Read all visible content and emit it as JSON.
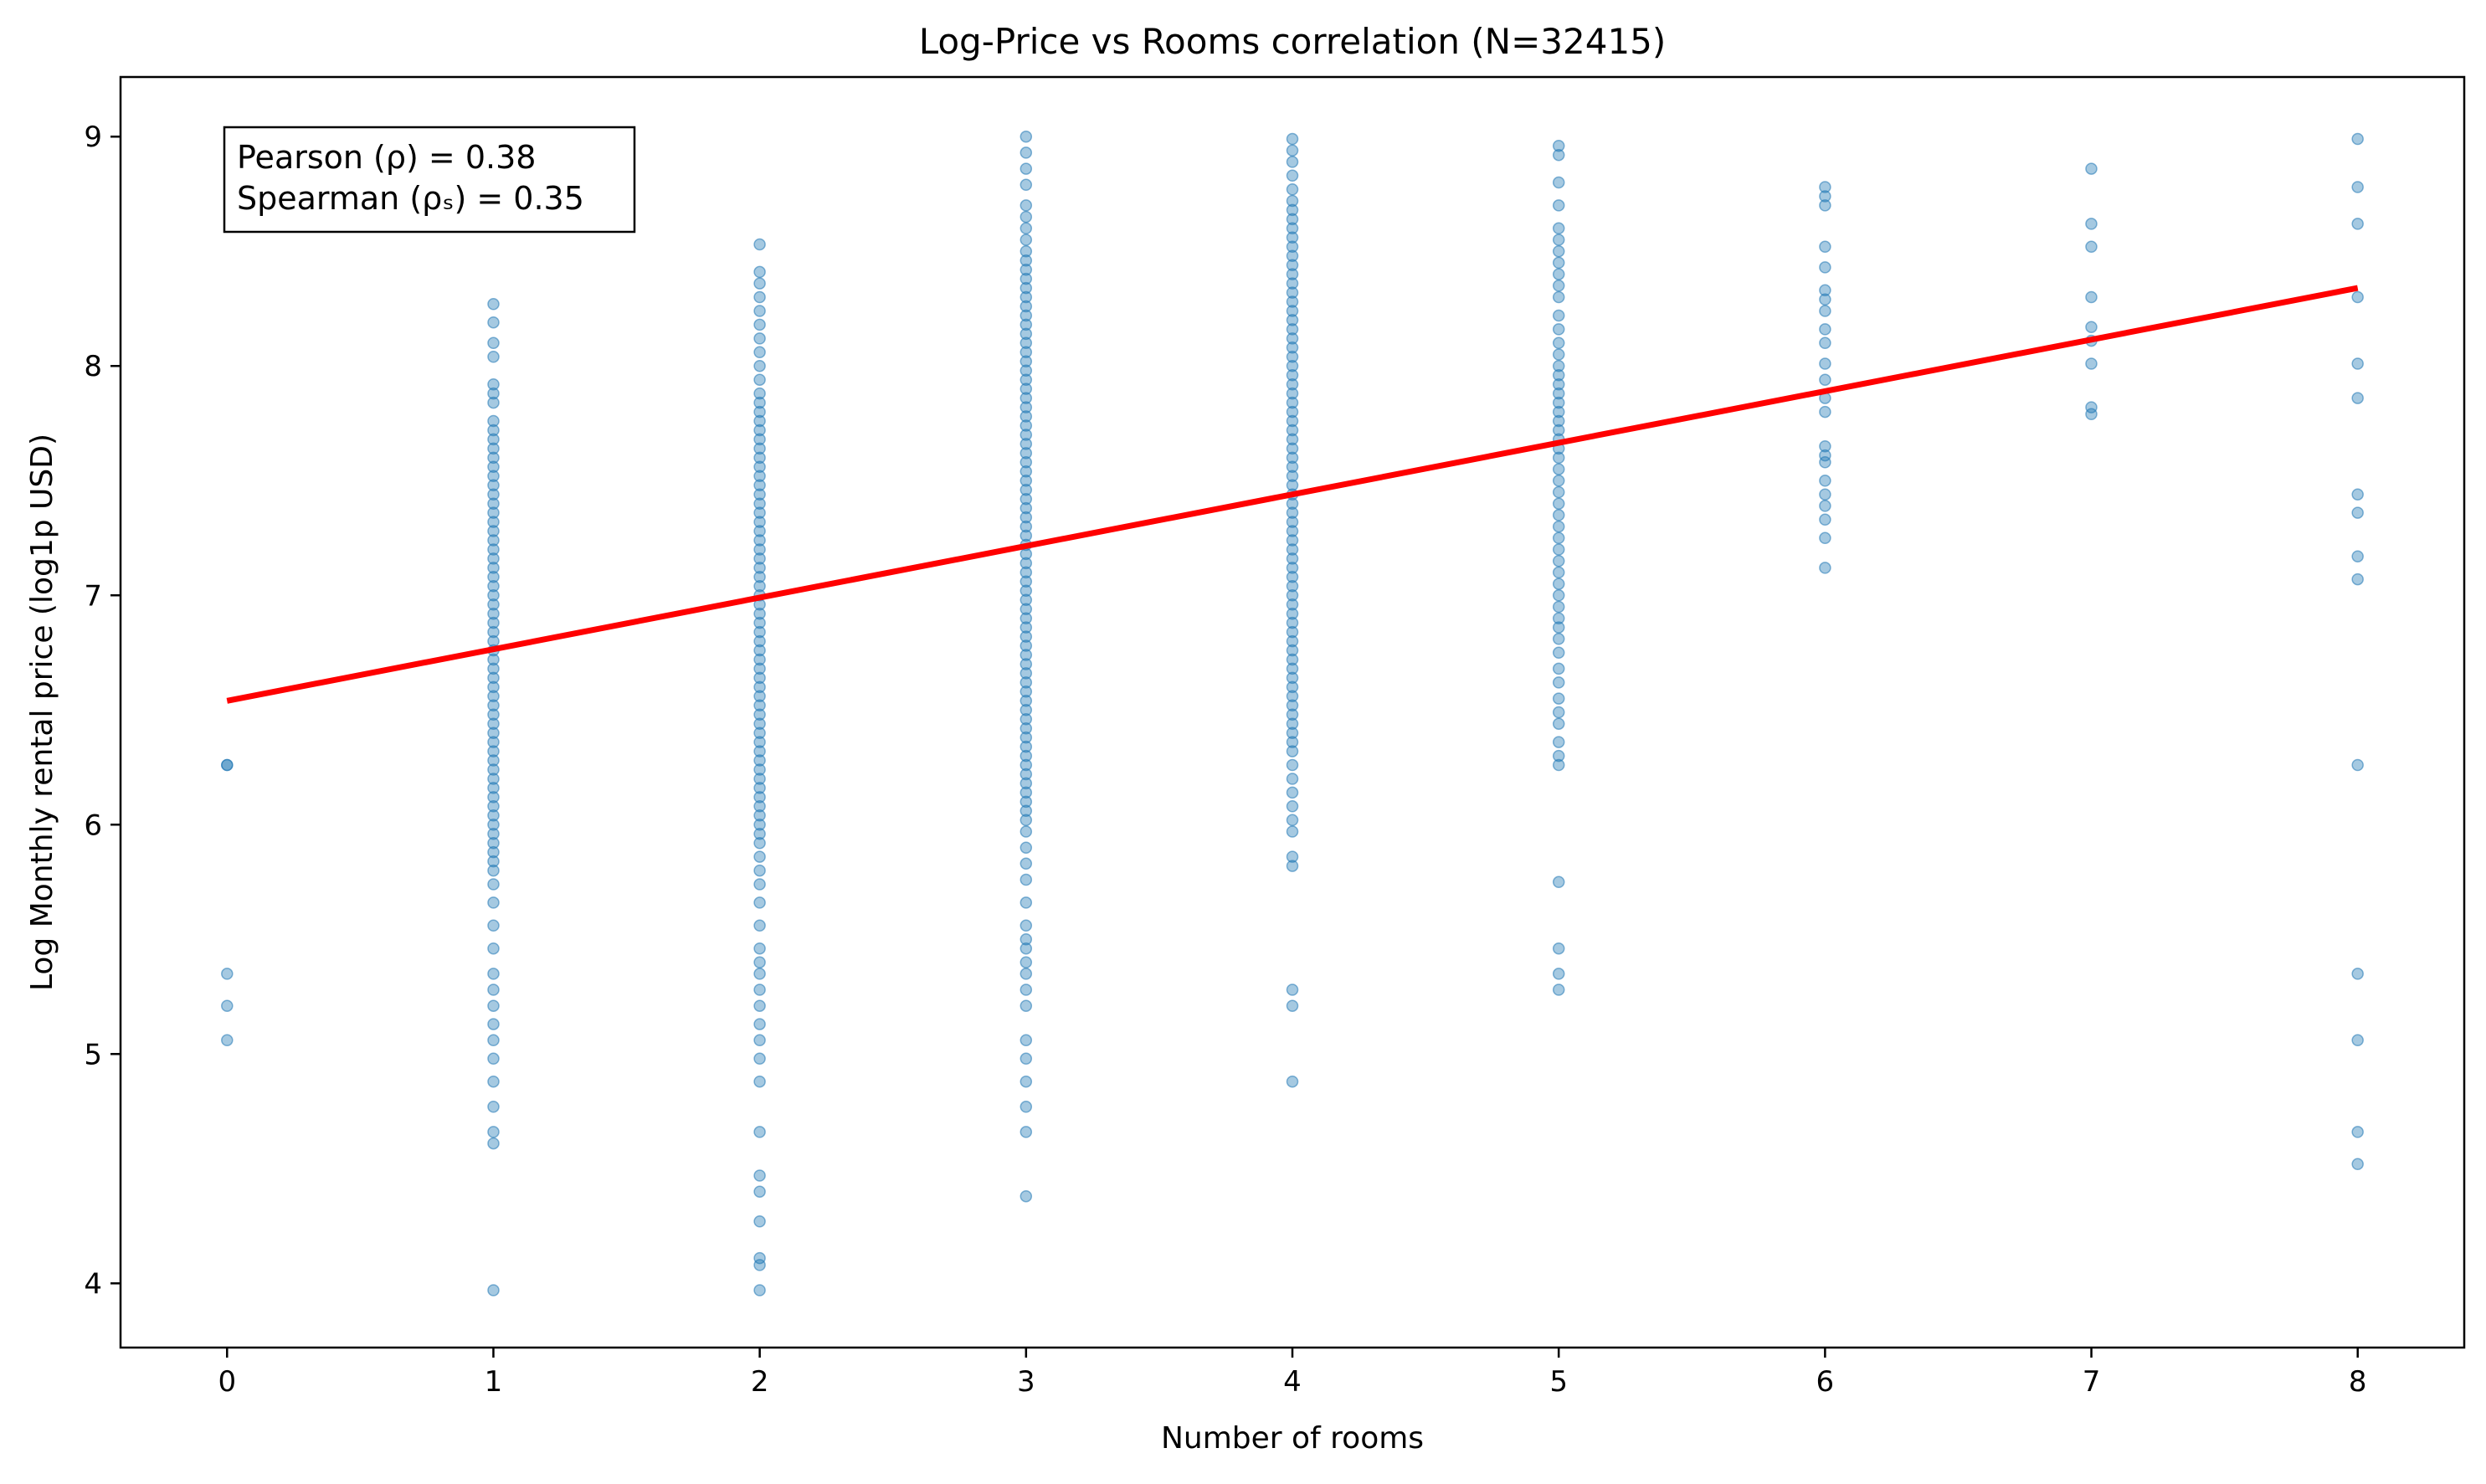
{
  "chart_data": {
    "type": "scatter",
    "title": "Log-Price vs Rooms correlation (N=32415)",
    "xlabel": "Number of rooms",
    "ylabel": "Log Monthly rental price (log1p USD)",
    "xlim": [
      -0.4,
      8.4
    ],
    "ylim": [
      3.72,
      9.26
    ],
    "xticks": [
      "0",
      "1",
      "2",
      "3",
      "4",
      "5",
      "6",
      "7",
      "8"
    ],
    "yticks": [
      "4",
      "5",
      "6",
      "7",
      "8",
      "9"
    ],
    "grid": false,
    "legend": "none",
    "annotation": {
      "pearson": "Pearson (ρ) = 0.38",
      "spearman": "Spearman (ρₛ) = 0.35",
      "placement": "top-left"
    },
    "regression_line": {
      "x": [
        0,
        8
      ],
      "y": [
        6.54,
        8.34
      ],
      "color": "#ff0000"
    },
    "point_color": "#1f77b4",
    "groups": [
      {
        "x": 0,
        "y": [
          6.26,
          6.26,
          5.35,
          5.21,
          5.06
        ]
      },
      {
        "x": 1,
        "y": [
          8.27,
          8.19,
          8.1,
          8.04,
          7.92,
          7.88,
          7.84,
          7.76,
          7.72,
          7.68,
          7.64,
          7.6,
          7.56,
          7.52,
          7.48,
          7.44,
          7.4,
          7.36,
          7.32,
          7.28,
          7.24,
          7.2,
          7.16,
          7.12,
          7.08,
          7.04,
          7.0,
          6.96,
          6.92,
          6.88,
          6.84,
          6.8,
          6.76,
          6.72,
          6.68,
          6.64,
          6.6,
          6.56,
          6.52,
          6.48,
          6.44,
          6.4,
          6.36,
          6.32,
          6.28,
          6.24,
          6.2,
          6.16,
          6.12,
          6.08,
          6.04,
          6.0,
          5.96,
          5.92,
          5.88,
          5.84,
          5.8,
          5.74,
          5.66,
          5.56,
          5.46,
          5.35,
          5.28,
          5.21,
          5.13,
          5.06,
          4.98,
          4.88,
          4.77,
          4.66,
          4.61,
          3.97
        ]
      },
      {
        "x": 2,
        "y": [
          8.53,
          8.41,
          8.36,
          8.3,
          8.24,
          8.18,
          8.12,
          8.06,
          8.0,
          7.94,
          7.88,
          7.84,
          7.8,
          7.76,
          7.72,
          7.68,
          7.64,
          7.6,
          7.56,
          7.52,
          7.48,
          7.44,
          7.4,
          7.36,
          7.32,
          7.28,
          7.24,
          7.2,
          7.16,
          7.12,
          7.08,
          7.04,
          7.0,
          6.96,
          6.92,
          6.88,
          6.84,
          6.8,
          6.76,
          6.72,
          6.68,
          6.64,
          6.6,
          6.56,
          6.52,
          6.48,
          6.44,
          6.4,
          6.36,
          6.32,
          6.28,
          6.24,
          6.2,
          6.16,
          6.12,
          6.08,
          6.04,
          6.0,
          5.96,
          5.92,
          5.86,
          5.8,
          5.74,
          5.66,
          5.56,
          5.46,
          5.4,
          5.35,
          5.28,
          5.21,
          5.13,
          5.06,
          4.98,
          4.88,
          4.66,
          4.47,
          4.4,
          4.27,
          4.11,
          4.08,
          3.97
        ]
      },
      {
        "x": 3,
        "y": [
          9.0,
          8.93,
          8.86,
          8.79,
          8.7,
          8.65,
          8.6,
          8.55,
          8.5,
          8.46,
          8.42,
          8.38,
          8.34,
          8.3,
          8.26,
          8.22,
          8.18,
          8.14,
          8.1,
          8.06,
          8.02,
          7.98,
          7.94,
          7.9,
          7.86,
          7.82,
          7.78,
          7.74,
          7.7,
          7.66,
          7.62,
          7.58,
          7.54,
          7.5,
          7.46,
          7.42,
          7.38,
          7.34,
          7.3,
          7.26,
          7.22,
          7.18,
          7.14,
          7.1,
          7.06,
          7.02,
          6.98,
          6.94,
          6.9,
          6.86,
          6.82,
          6.78,
          6.74,
          6.7,
          6.66,
          6.62,
          6.58,
          6.54,
          6.5,
          6.46,
          6.42,
          6.38,
          6.34,
          6.3,
          6.26,
          6.22,
          6.18,
          6.14,
          6.1,
          6.06,
          6.02,
          5.97,
          5.9,
          5.83,
          5.76,
          5.66,
          5.56,
          5.5,
          5.46,
          5.4,
          5.35,
          5.28,
          5.21,
          5.06,
          4.98,
          4.88,
          4.77,
          4.66,
          4.38
        ]
      },
      {
        "x": 4,
        "y": [
          8.99,
          8.94,
          8.89,
          8.83,
          8.77,
          8.72,
          8.68,
          8.64,
          8.6,
          8.56,
          8.52,
          8.48,
          8.44,
          8.4,
          8.36,
          8.32,
          8.28,
          8.24,
          8.2,
          8.16,
          8.12,
          8.08,
          8.04,
          8.0,
          7.96,
          7.92,
          7.88,
          7.84,
          7.8,
          7.76,
          7.72,
          7.68,
          7.64,
          7.6,
          7.56,
          7.52,
          7.48,
          7.44,
          7.4,
          7.36,
          7.32,
          7.28,
          7.24,
          7.2,
          7.16,
          7.12,
          7.08,
          7.04,
          7.0,
          6.96,
          6.92,
          6.88,
          6.84,
          6.8,
          6.76,
          6.72,
          6.68,
          6.64,
          6.6,
          6.56,
          6.52,
          6.48,
          6.44,
          6.4,
          6.36,
          6.32,
          6.26,
          6.2,
          6.14,
          6.08,
          6.02,
          5.97,
          5.86,
          5.82,
          5.28,
          5.21,
          4.88
        ]
      },
      {
        "x": 5,
        "y": [
          8.96,
          8.92,
          8.8,
          8.7,
          8.6,
          8.55,
          8.5,
          8.45,
          8.4,
          8.35,
          8.3,
          8.22,
          8.16,
          8.1,
          8.05,
          8.0,
          7.96,
          7.92,
          7.88,
          7.84,
          7.8,
          7.76,
          7.72,
          7.68,
          7.64,
          7.6,
          7.55,
          7.5,
          7.45,
          7.4,
          7.35,
          7.3,
          7.25,
          7.2,
          7.15,
          7.1,
          7.05,
          7.0,
          6.95,
          6.9,
          6.86,
          6.81,
          6.75,
          6.68,
          6.62,
          6.55,
          6.49,
          6.44,
          6.36,
          6.3,
          6.26,
          5.75,
          5.46,
          5.35,
          5.28
        ]
      },
      {
        "x": 6,
        "y": [
          8.78,
          8.74,
          8.7,
          8.52,
          8.43,
          8.33,
          8.29,
          8.24,
          8.16,
          8.1,
          8.01,
          7.94,
          7.86,
          7.8,
          7.65,
          7.61,
          7.58,
          7.5,
          7.44,
          7.39,
          7.33,
          7.25,
          7.12
        ]
      },
      {
        "x": 7,
        "y": [
          8.86,
          8.62,
          8.52,
          8.3,
          8.17,
          8.11,
          8.01,
          7.82,
          7.79
        ]
      },
      {
        "x": 8,
        "y": [
          8.99,
          8.78,
          8.62,
          8.3,
          8.01,
          7.86,
          7.44,
          7.36,
          7.17,
          7.07,
          6.26,
          5.35,
          5.06,
          4.66,
          4.52
        ]
      }
    ]
  }
}
